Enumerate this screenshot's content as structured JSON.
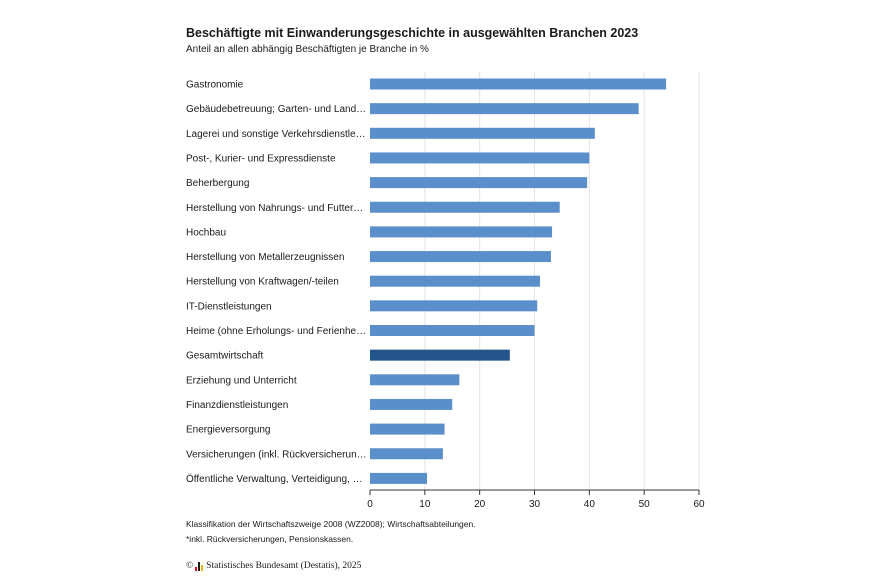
{
  "chart_data": {
    "type": "bar",
    "orientation": "horizontal",
    "title": "Beschäftigte mit Einwanderungsgeschichte in ausgewählten Branchen 2023",
    "subtitle": "Anteil an allen abhängig Beschäftigten je Branche in %",
    "categories": [
      "Gastronomie",
      "Gebäudebetreuung; Garten- und Land…",
      "Lagerei und sonstige Verkehrsdienstle…",
      "Post-, Kurier- und Expressdienste",
      "Beherbergung",
      "Herstellung von Nahrungs- und Futter…",
      "Hochbau",
      "Herstellung von Metallerzeugnissen",
      "Herstellung von Kraftwagen/-teilen",
      "IT-Dienstleistungen",
      "Heime (ohne Erholungs- und Ferienhe…",
      "Gesamtwirtschaft",
      "Erziehung und Unterricht",
      "Finanzdienstleistungen",
      "Energieversorgung",
      "Versicherungen (inkl. Rückversicherun…",
      "Öffentliche Verwaltung, Verteidigung, …"
    ],
    "values": [
      54,
      49,
      41,
      40,
      39.6,
      34.6,
      33.2,
      33,
      31,
      30.5,
      30,
      25.5,
      16.3,
      15,
      13.6,
      13.3,
      10.4
    ],
    "highlight_index": 11,
    "xlim": [
      0,
      60
    ],
    "xticks": [
      "0",
      "10",
      "20",
      "30",
      "40",
      "50",
      "60"
    ],
    "grid": "vertical",
    "legend": "none"
  },
  "colors": {
    "bar": "#5b8fcc",
    "bar_highlight": "#24558a",
    "grid": "#e3e3e3",
    "axis": "#333333"
  },
  "notes": [
    "Klassifikation der Wirtschaftszweige 2008 (WZ2008); Wirtschaftsabteilungen.",
    "*inkl. Rückversicherungen, Pensionskassen."
  ],
  "source": {
    "copyright": "©",
    "logo": "destatis-logo-icon",
    "text": "Statistisches Bundesamt (Destatis), 2025"
  }
}
